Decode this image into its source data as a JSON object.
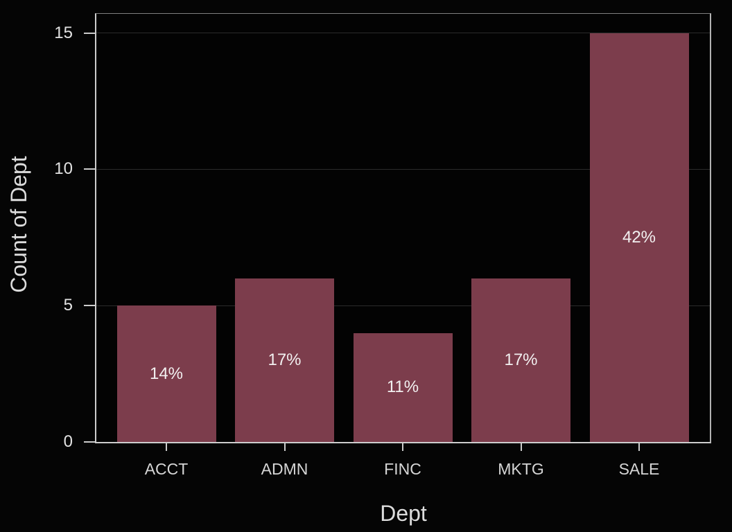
{
  "chart_data": {
    "type": "bar",
    "title": "",
    "categories": [
      "ACCT",
      "ADMN",
      "FINC",
      "MKTG",
      "SALE"
    ],
    "values": [
      5,
      6,
      4,
      6,
      15
    ],
    "bar_labels": [
      "14%",
      "17%",
      "11%",
      "17%",
      "42%"
    ],
    "xlabel": "Dept",
    "ylabel": "Count of Dept",
    "yticks": [
      0,
      5,
      10,
      15
    ],
    "ylim": [
      0,
      15.7
    ],
    "grid": "horizontal-only",
    "legend": "none",
    "colors": {
      "bar": "#7c3d4c",
      "figure_background": "#050505",
      "plot_background": "#030303",
      "gridline": "#2b2b2b",
      "axis_line": "#cdcdcd",
      "frame_top": "#7f7f7f",
      "frame_right": "#b2b2b2",
      "tick_label": "#e2e2e2",
      "category_label": "#d6d6d6",
      "bar_label": "#f2f0f0",
      "axis_title": "#dcdcdc"
    }
  }
}
